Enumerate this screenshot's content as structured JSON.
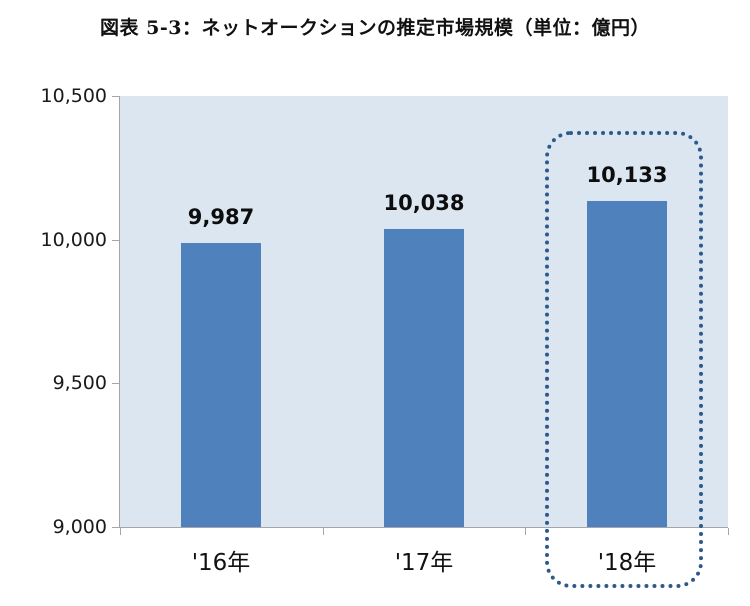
{
  "chart_data": {
    "type": "bar",
    "title": "図表 5-3：ネットオークションの推定市場規模（単位：億円）",
    "categories": [
      "'16年",
      "'17年",
      "'18年"
    ],
    "values": [
      9987,
      10038,
      10133
    ],
    "value_labels": [
      "9,987",
      "10,038",
      "10,133"
    ],
    "ylim": [
      9000,
      10500
    ],
    "yticks": [
      10500,
      10000,
      9500,
      9000
    ],
    "ytick_labels": [
      "10,500",
      "10,000",
      "9,500",
      "9,000"
    ],
    "xlabel": "",
    "ylabel": "",
    "grid": false,
    "legend": "none",
    "highlight_index": 2,
    "highlight_style": "dotted-rounded-box",
    "colors": {
      "bar": "#4F81BD",
      "plot_background": "#DCE6F1",
      "highlight_border": "#2B5A8B",
      "axis": "#A6A6A6",
      "text": "#111111"
    }
  }
}
